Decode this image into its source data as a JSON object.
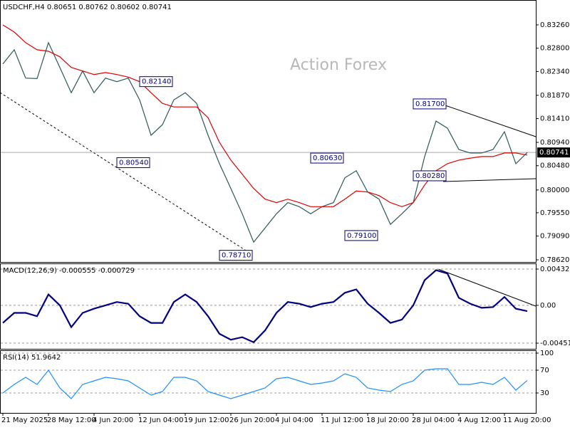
{
  "chart_data": [
    {
      "type": "line",
      "title": "USDCHF,H4 0.80651 0.80762 0.80602 0.80741",
      "watermark": "Action Forex",
      "ylim": [
        0.78578,
        0.83724
      ],
      "yticks": [
        {
          "value": 0.8326,
          "label": "0.83260"
        },
        {
          "value": 0.828,
          "label": "0.82800"
        },
        {
          "value": 0.8234,
          "label": "0.82340"
        },
        {
          "value": 0.8187,
          "label": "0.81870"
        },
        {
          "value": 0.8141,
          "label": "0.81410"
        },
        {
          "value": 0.8094,
          "label": "0.80940"
        },
        {
          "value": 0.8048,
          "label": "0.80480"
        },
        {
          "value": 0.8,
          "label": "0.80000"
        },
        {
          "value": 0.7955,
          "label": "0.79550"
        },
        {
          "value": 0.7909,
          "label": "0.79090"
        },
        {
          "value": 0.7862,
          "label": "0.78620"
        }
      ],
      "last": 0.80741,
      "series": [
        {
          "color": "#2f5659",
          "values": [
            0.8249,
            0.8277,
            0.8221,
            0.822,
            0.8291,
            0.8242,
            0.8192,
            0.8235,
            0.8192,
            0.8221,
            0.8214,
            0.8221,
            0.8178,
            0.8108,
            0.8129,
            0.8178,
            0.8192,
            0.8171,
            0.8108,
            0.8052,
            0.8003,
            0.7953,
            0.7897,
            0.7925,
            0.7953,
            0.7975,
            0.7967,
            0.7953,
            0.7967,
            0.7975,
            0.8024,
            0.8038,
            0.7996,
            0.7982,
            0.7932,
            0.7953,
            0.7975,
            0.8066,
            0.8136,
            0.8122,
            0.808,
            0.8073,
            0.8073,
            0.808,
            0.8115,
            0.8052,
            0.8074
          ]
        },
        {
          "color": "#e00000",
          "values": [
            0.8326,
            0.8312,
            0.8291,
            0.8277,
            0.8274,
            0.8263,
            0.8242,
            0.8235,
            0.8228,
            0.8232,
            0.8228,
            0.8223,
            0.8214,
            0.8192,
            0.8171,
            0.8164,
            0.8164,
            0.8164,
            0.8143,
            0.8094,
            0.8059,
            0.8031,
            0.8003,
            0.7982,
            0.7975,
            0.7982,
            0.7975,
            0.7967,
            0.7967,
            0.7967,
            0.7982,
            0.7998,
            0.7996,
            0.7989,
            0.7975,
            0.7967,
            0.7975,
            0.801,
            0.8038,
            0.8052,
            0.8059,
            0.8063,
            0.8066,
            0.8066,
            0.8073,
            0.8073,
            0.8069
          ]
        }
      ],
      "annotations": [
        {
          "index": 15,
          "value": 0.8214,
          "label": "0.82140"
        },
        {
          "index": 13,
          "value": 0.8054,
          "label": "0.80540"
        },
        {
          "index": 22,
          "value": 0.7871,
          "label": "0.78710"
        },
        {
          "index": 30,
          "value": 0.8063,
          "label": "0.80630"
        },
        {
          "index": 33,
          "value": 0.791,
          "label": "0.79100"
        },
        {
          "index": 39,
          "value": 0.817,
          "label": "0.81700"
        },
        {
          "index": 39,
          "value": 0.8028,
          "label": "0.80280"
        }
      ]
    },
    {
      "type": "line",
      "title": "MACD(12,26,9) -0.000555 -0.000729",
      "ylim": [
        -0.005191,
        0.005005
      ],
      "yticks": [
        0.004325,
        {
          "value": 0,
          "label": "0.00"
        },
        -0.004511
      ],
      "series": [
        {
          "color": "#000080",
          "values": [
            -0.0021,
            -0.0009,
            -0.0009,
            -0.0013,
            0.0013,
            0,
            -0.0026,
            -0.0009,
            -0.0004,
            0,
            0.0004,
            0.0002,
            -0.0013,
            -0.0021,
            -0.0021,
            0.0004,
            0.0013,
            0.0004,
            -0.0013,
            -0.0034,
            -0.0041,
            -0.0038,
            -0.0044,
            -0.003,
            -0.0009,
            0.0004,
            0.0002,
            -0.0002,
            0.0002,
            0.0004,
            0.0015,
            0.0019,
            0.0002,
            -0.0009,
            -0.0021,
            -0.0017,
            0,
            0.003,
            0.0042,
            0.0038,
            0.0009,
            0.0002,
            -0.0003,
            -0.0002,
            0.001,
            -0.0004,
            -0.0007
          ]
        }
      ]
    },
    {
      "type": "line",
      "title": "RSI(14) 51.9642",
      "ylim": [
        -5,
        105
      ],
      "yticks": [
        100,
        70,
        30
      ],
      "categories": [
        "21 May 2025",
        null,
        null,
        null,
        "28 May 12:00",
        null,
        null,
        null,
        "4 Jun 20:00",
        null,
        null,
        null,
        "12 Jun 04:00",
        null,
        null,
        null,
        "19 Jun 12:00",
        null,
        null,
        null,
        "26 Jun 20:00",
        null,
        null,
        null,
        "4 Jul 04:00",
        null,
        null,
        null,
        "11 Jul 12:00",
        null,
        null,
        null,
        "18 Jul 20:00",
        null,
        null,
        null,
        "28 Jul 04:00",
        null,
        null,
        null,
        "4 Aug 12:00",
        null,
        null,
        null,
        "11 Aug 20:00",
        null,
        null
      ],
      "series": [
        {
          "color": "#1e90ff",
          "values": [
            30,
            45,
            57.5,
            45,
            70,
            38.75,
            20,
            45,
            51.25,
            57.5,
            55,
            51.25,
            38.75,
            26.25,
            32.5,
            57.5,
            57.5,
            51.25,
            32.5,
            26.25,
            20,
            26.25,
            32.5,
            38.75,
            55,
            57.5,
            51.25,
            45,
            47.5,
            51.25,
            63.75,
            57.5,
            38.75,
            35,
            32.5,
            45,
            51.25,
            70,
            72.5,
            72.5,
            45,
            45,
            48.75,
            45,
            57.5,
            35,
            51.96
          ]
        }
      ]
    }
  ]
}
